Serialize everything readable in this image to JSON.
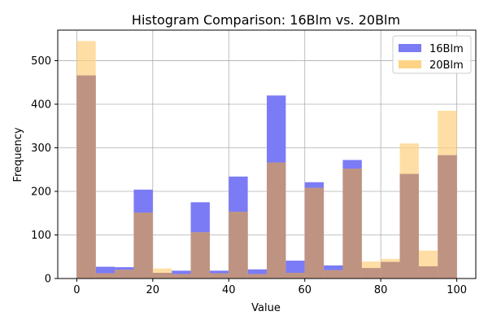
{
  "chart_data": {
    "type": "bar",
    "subtype": "overlapping-histogram",
    "title": "Histogram Comparison: 16Blm vs. 20Blm",
    "xlabel": "Value",
    "ylabel": "Frequency",
    "xlim": [
      -5,
      105
    ],
    "ylim": [
      0,
      570
    ],
    "xticks": [
      0,
      20,
      40,
      60,
      80,
      100
    ],
    "yticks": [
      0,
      100,
      200,
      300,
      400,
      500
    ],
    "grid": true,
    "legend_position": "top-right",
    "bin_edges": [
      0,
      5,
      10,
      15,
      20,
      25,
      30,
      35,
      40,
      45,
      50,
      55,
      60,
      65,
      70,
      75,
      80,
      85,
      90,
      95,
      100
    ],
    "series": [
      {
        "name": "16Blm",
        "color": "#7b7bf6",
        "values": [
          466,
          27,
          26,
          204,
          13,
          18,
          175,
          18,
          234,
          21,
          420,
          41,
          221,
          30,
          272,
          24,
          38,
          240,
          28,
          283
        ]
      },
      {
        "name": "20Blm",
        "color": "#fdd385",
        "values": [
          545,
          12,
          20,
          151,
          23,
          10,
          106,
          12,
          153,
          10,
          266,
          13,
          208,
          19,
          252,
          39,
          45,
          310,
          64,
          385
        ]
      }
    ],
    "overlap_color": "#bf9381"
  }
}
